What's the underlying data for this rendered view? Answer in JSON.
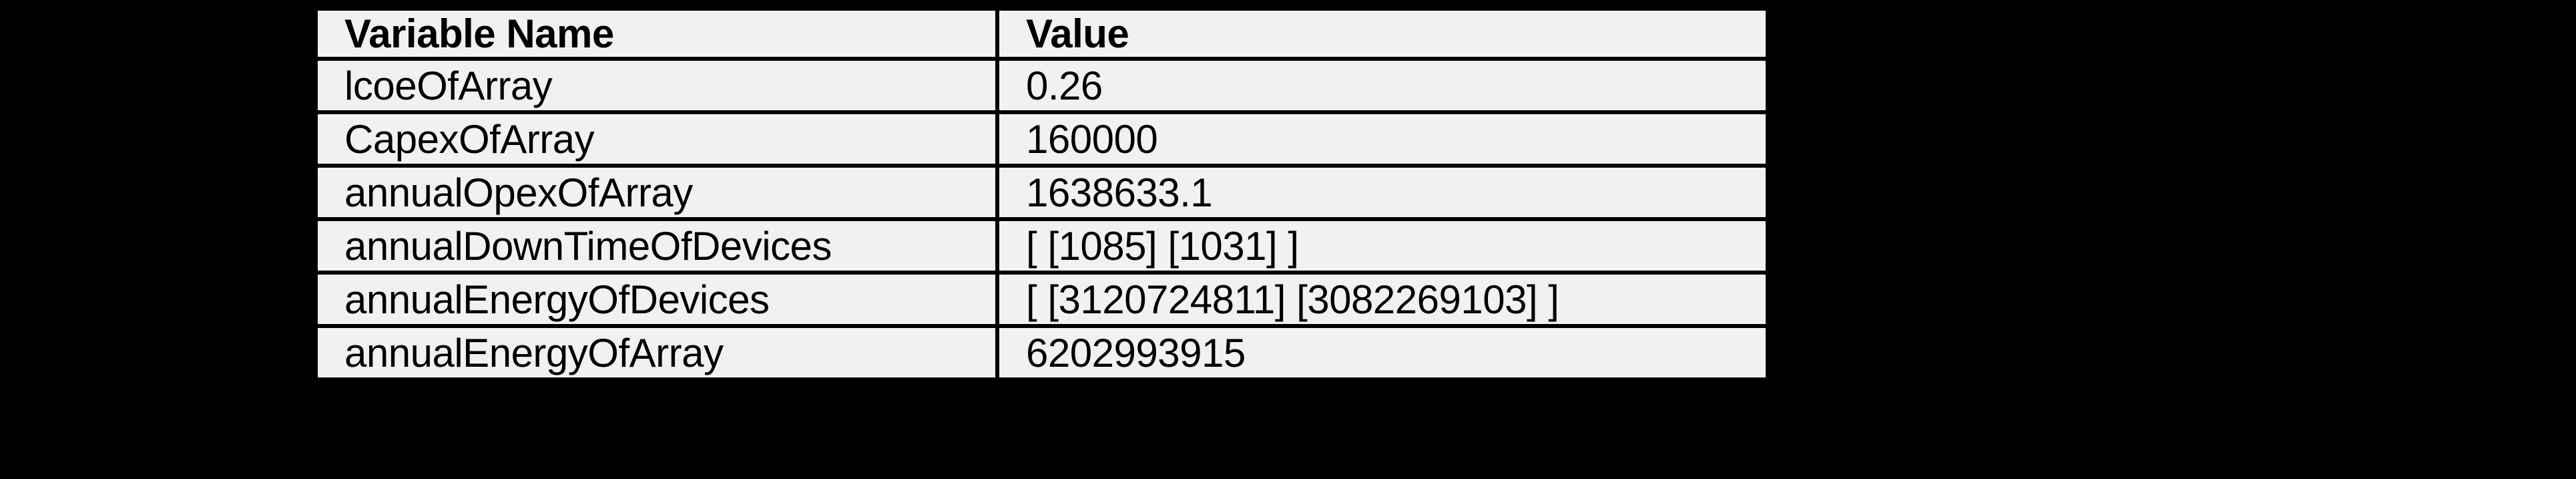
{
  "page": {
    "background_color": "#000000"
  },
  "table": {
    "columns": [
      {
        "label": "Variable Name"
      },
      {
        "label": "Value"
      }
    ],
    "rows": [
      {
        "name": "lcoeOfArray",
        "value": "0.26"
      },
      {
        "name": "CapexOfArray",
        "value": "160000"
      },
      {
        "name": "annualOpexOfArray",
        "value": "1638633.1"
      },
      {
        "name": "annualDownTimeOfDevices",
        "value": "[ [1085] [1031] ]"
      },
      {
        "name": "annualEnergyOfDevices",
        "value": "[ [3120724811] [3082269103] ]"
      },
      {
        "name": "annualEnergyOfArray",
        "value": "6202993915"
      }
    ],
    "colors": {
      "cell_background": "#f1f1f1",
      "border": "#000000",
      "text": "#000000"
    }
  },
  "chart_data": {
    "type": "table",
    "title": "",
    "columns": [
      "Variable Name",
      "Value"
    ],
    "rows": [
      [
        "lcoeOfArray",
        "0.26"
      ],
      [
        "CapexOfArray",
        "160000"
      ],
      [
        "annualOpexOfArray",
        "1638633.1"
      ],
      [
        "annualDownTimeOfDevices",
        "[ [1085] [1031] ]"
      ],
      [
        "annualEnergyOfDevices",
        "[ [3120724811] [3082269103] ]"
      ],
      [
        "annualEnergyOfArray",
        "6202993915"
      ]
    ],
    "layout": {
      "background": "#000000",
      "grid": true,
      "header_bold": true
    }
  }
}
